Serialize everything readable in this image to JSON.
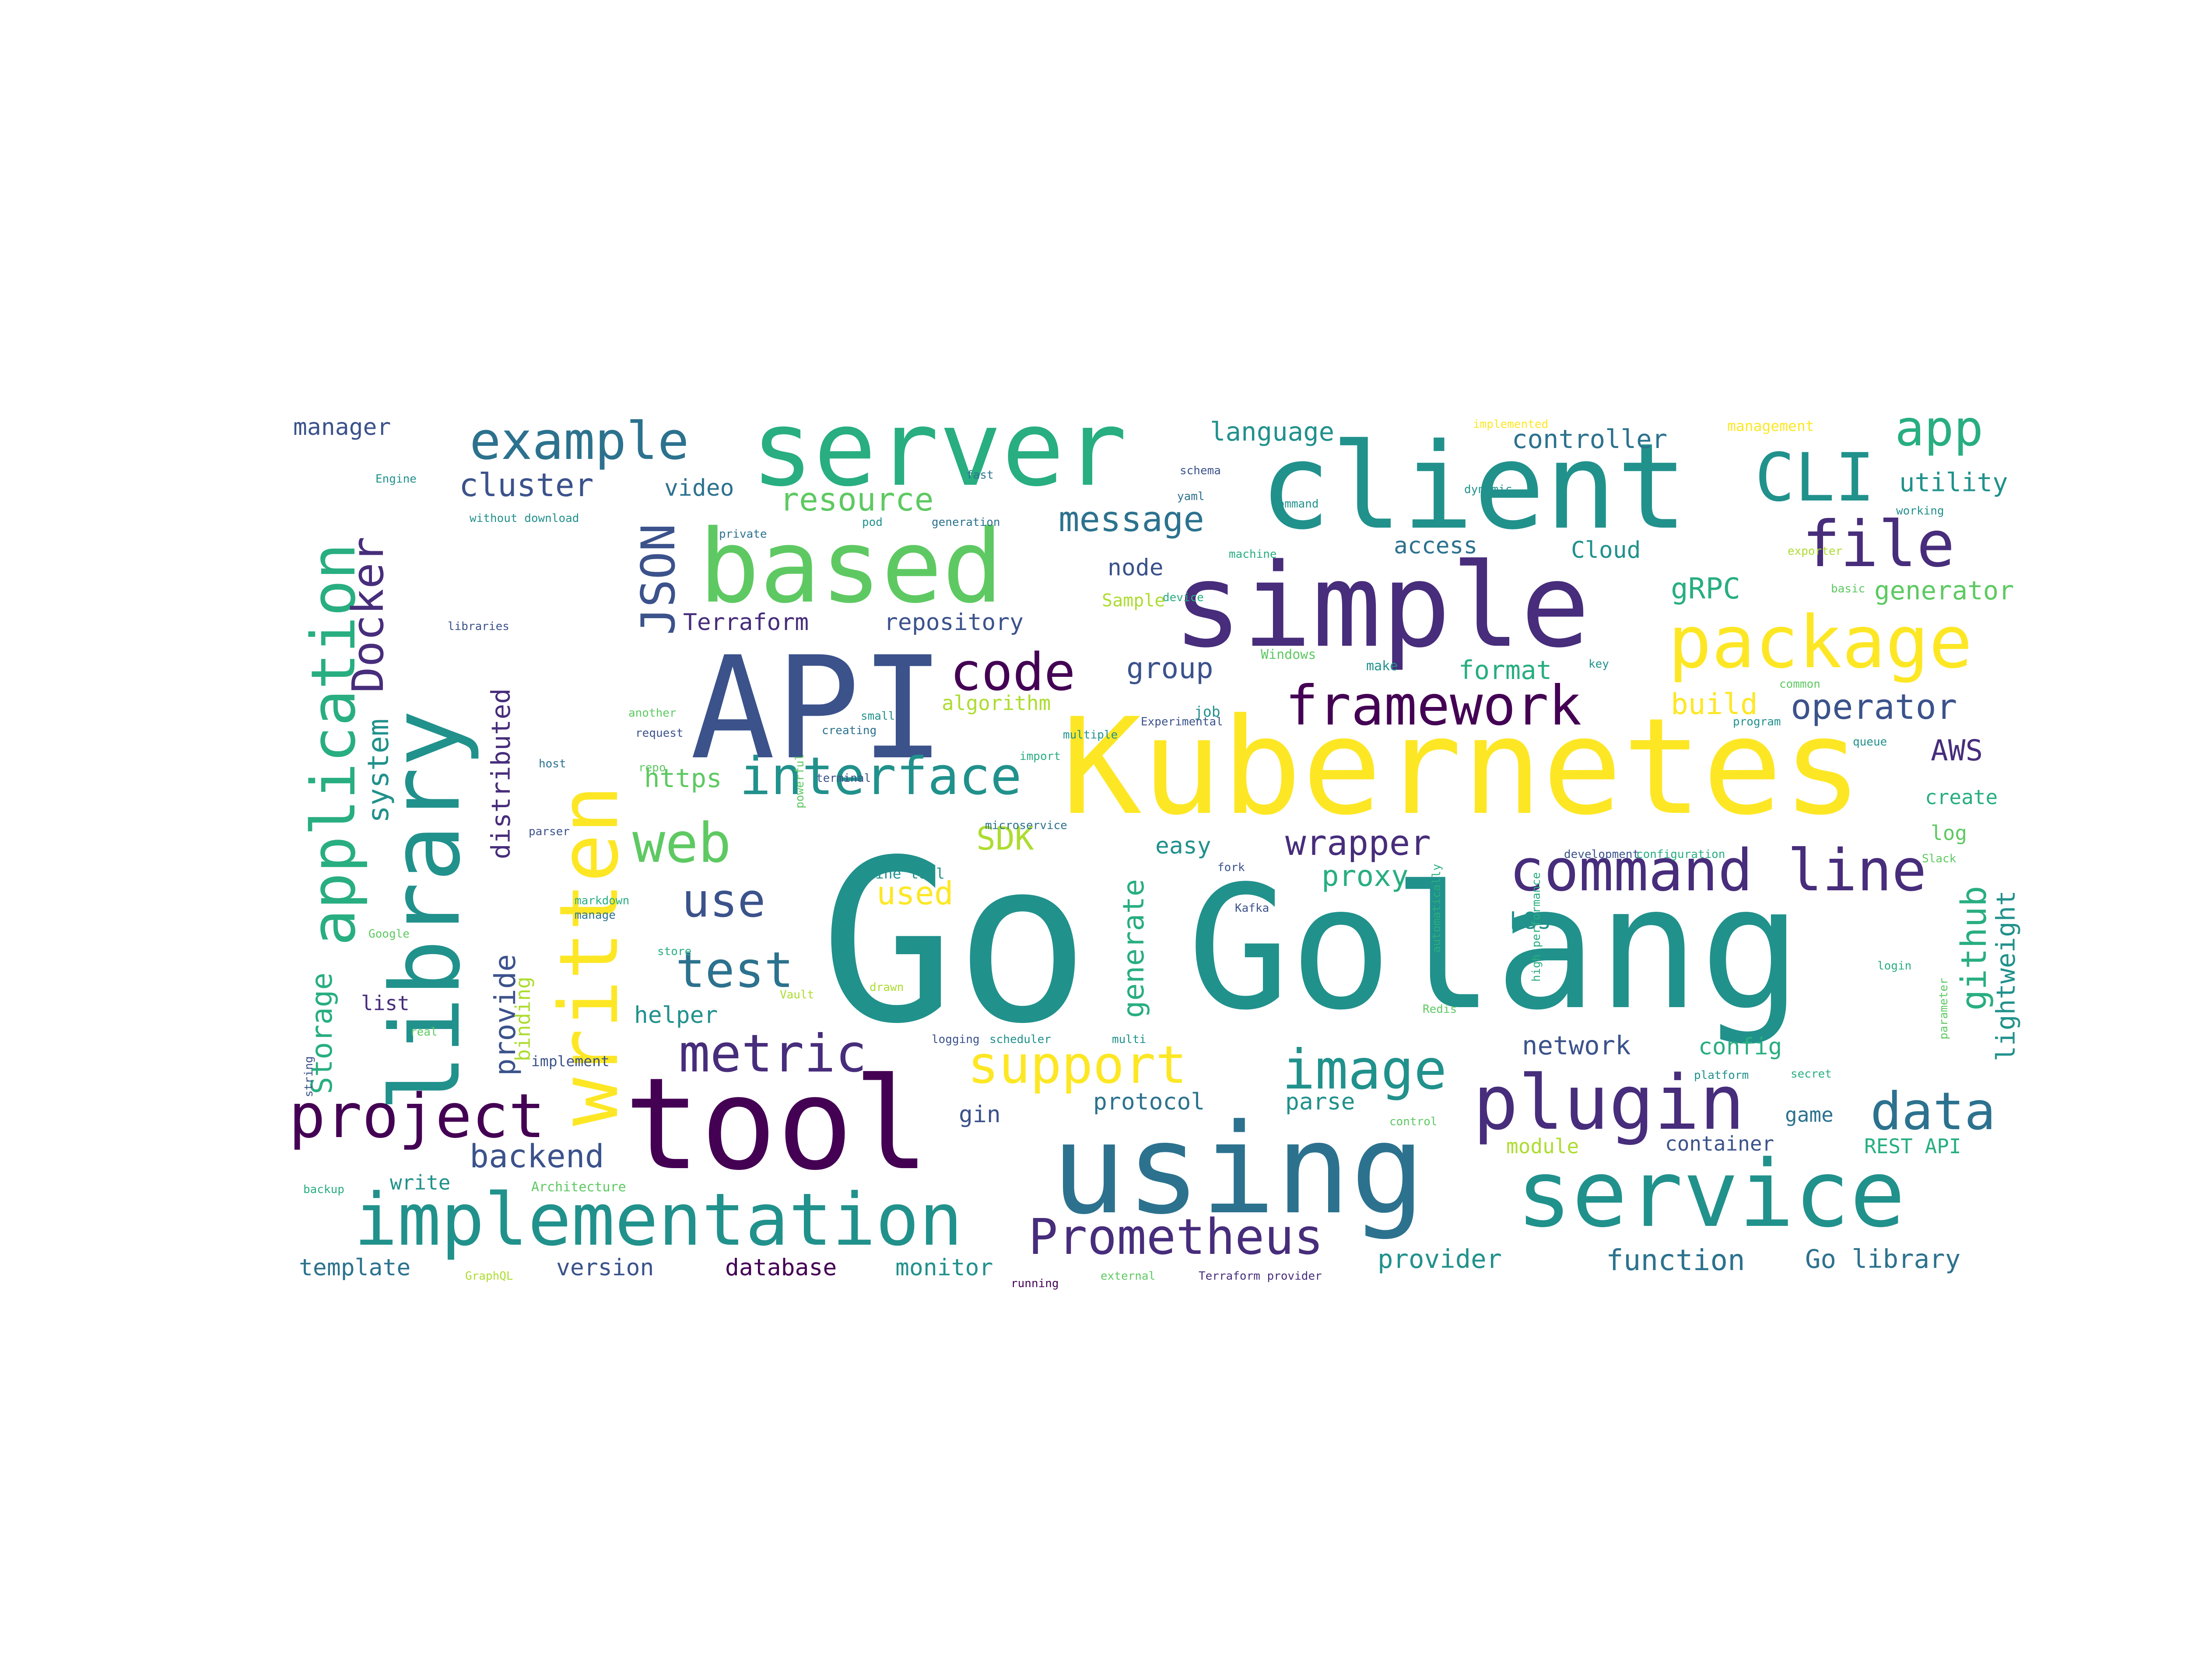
{
  "colors": {
    "background": "#ffffff",
    "palette": [
      "#440154",
      "#472d7b",
      "#3b528b",
      "#2c728e",
      "#21918c",
      "#28ae80",
      "#5ec962",
      "#addc30",
      "#fde725"
    ]
  },
  "words": [
    {
      "text": "Go"
    },
    {
      "text": "Golang"
    },
    {
      "text": "Kubernetes"
    },
    {
      "text": "API"
    },
    {
      "text": "tool"
    },
    {
      "text": "using"
    },
    {
      "text": "client"
    },
    {
      "text": "simple"
    },
    {
      "text": "server"
    },
    {
      "text": "based"
    },
    {
      "text": "library"
    },
    {
      "text": "written"
    },
    {
      "text": "service"
    },
    {
      "text": "implementation"
    },
    {
      "text": "plugin"
    },
    {
      "text": "package"
    },
    {
      "text": "CLI"
    },
    {
      "text": "file"
    },
    {
      "text": "command line"
    },
    {
      "text": "application"
    },
    {
      "text": "project"
    },
    {
      "text": "support"
    },
    {
      "text": "image"
    },
    {
      "text": "metric"
    },
    {
      "text": "interface"
    },
    {
      "text": "framework"
    },
    {
      "text": "Prometheus"
    },
    {
      "text": "code"
    },
    {
      "text": "example"
    },
    {
      "text": "app"
    },
    {
      "text": "data"
    },
    {
      "text": "web"
    },
    {
      "text": "test"
    },
    {
      "text": "use"
    },
    {
      "text": "JSON"
    },
    {
      "text": "Docker"
    },
    {
      "text": "message"
    },
    {
      "text": "resource"
    },
    {
      "text": "operator"
    },
    {
      "text": "backend"
    },
    {
      "text": "cluster"
    },
    {
      "text": "wrapper"
    },
    {
      "text": "provide"
    },
    {
      "text": "distributed"
    },
    {
      "text": "Storage"
    },
    {
      "text": "system"
    },
    {
      "text": "generate"
    },
    {
      "text": "github"
    },
    {
      "text": "lightweight"
    },
    {
      "text": "Terraform"
    },
    {
      "text": "repository"
    },
    {
      "text": "group"
    },
    {
      "text": "node"
    },
    {
      "text": "easy"
    },
    {
      "text": "SDK"
    },
    {
      "text": "used"
    },
    {
      "text": "proxy"
    },
    {
      "text": "utility"
    },
    {
      "text": "controller"
    },
    {
      "text": "language"
    },
    {
      "text": "manager"
    },
    {
      "text": "video"
    },
    {
      "text": "gRPC"
    },
    {
      "text": "generator"
    },
    {
      "text": "Cloud"
    },
    {
      "text": "access"
    },
    {
      "text": "format"
    },
    {
      "text": "build"
    },
    {
      "text": "AWS"
    },
    {
      "text": "create"
    },
    {
      "text": "log"
    },
    {
      "text": "https"
    },
    {
      "text": "algorithm"
    },
    {
      "text": "helper"
    },
    {
      "text": "list"
    },
    {
      "text": "binding"
    },
    {
      "text": "network"
    },
    {
      "text": "config"
    },
    {
      "text": "k8s"
    },
    {
      "text": "protocol"
    },
    {
      "text": "parse"
    },
    {
      "text": "gin"
    },
    {
      "text": "game"
    },
    {
      "text": "container"
    },
    {
      "text": "REST API"
    },
    {
      "text": "module"
    },
    {
      "text": "provider"
    },
    {
      "text": "function"
    },
    {
      "text": "Go library"
    },
    {
      "text": "template"
    },
    {
      "text": "version"
    },
    {
      "text": "database"
    },
    {
      "text": "monitor"
    },
    {
      "text": "write"
    },
    {
      "text": "implement"
    },
    {
      "text": "management"
    },
    {
      "text": "Sample"
    },
    {
      "text": "job"
    },
    {
      "text": "microservice"
    },
    {
      "text": "Terraform provider"
    },
    {
      "text": "schema"
    },
    {
      "text": "yaml"
    },
    {
      "text": "working"
    },
    {
      "text": "exporter"
    },
    {
      "text": "basic"
    },
    {
      "text": "Windows"
    },
    {
      "text": "make"
    },
    {
      "text": "key"
    },
    {
      "text": "development"
    },
    {
      "text": "configuration"
    },
    {
      "text": "Slack"
    },
    {
      "text": "fast"
    },
    {
      "text": "Engine"
    },
    {
      "text": "command"
    },
    {
      "text": "dynamic"
    },
    {
      "text": "machine"
    },
    {
      "text": "Experimental"
    },
    {
      "text": "program"
    },
    {
      "text": "common"
    },
    {
      "text": "another"
    },
    {
      "text": "request"
    },
    {
      "text": "repo"
    },
    {
      "text": "parser"
    },
    {
      "text": "terminal"
    },
    {
      "text": "markdown"
    },
    {
      "text": "manage"
    },
    {
      "text": "store"
    },
    {
      "text": "Google"
    },
    {
      "text": "drawn"
    },
    {
      "text": "real"
    },
    {
      "text": "string"
    },
    {
      "text": "high performance"
    },
    {
      "text": "logging"
    },
    {
      "text": "scheduler"
    },
    {
      "text": "multi"
    },
    {
      "text": "control"
    },
    {
      "text": "platform"
    },
    {
      "text": "Architecture"
    },
    {
      "text": "backup"
    },
    {
      "text": "GraphQL"
    },
    {
      "text": "running"
    },
    {
      "text": "external"
    },
    {
      "text": "creating"
    },
    {
      "text": "small"
    },
    {
      "text": "fork"
    },
    {
      "text": "pod"
    },
    {
      "text": "generation"
    },
    {
      "text": "private"
    },
    {
      "text": "automatically"
    },
    {
      "text": "Redis"
    },
    {
      "text": "Vault"
    },
    {
      "text": "login"
    },
    {
      "text": "Kafka"
    },
    {
      "text": "secret"
    },
    {
      "text": "parameter"
    },
    {
      "text": "multiple"
    },
    {
      "text": "device"
    },
    {
      "text": "import"
    },
    {
      "text": "implemented"
    },
    {
      "text": "powerful"
    },
    {
      "text": "queue"
    },
    {
      "text": "libraries"
    },
    {
      "text": "host"
    },
    {
      "text": "without download"
    },
    {
      "text": "line tool"
    }
  ]
}
